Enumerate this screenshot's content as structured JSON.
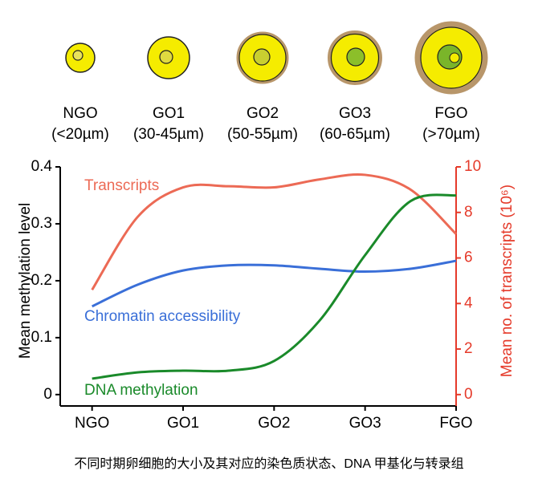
{
  "stages": [
    {
      "name": "NGO",
      "size": "(<20µm)"
    },
    {
      "name": "GO1",
      "size": "(30-45µm)"
    },
    {
      "name": "GO2",
      "size": "(50-55µm)"
    },
    {
      "name": "GO3",
      "size": "(60-65µm)"
    },
    {
      "name": "FGO",
      "size": "(>70µm)"
    }
  ],
  "chart_data": {
    "type": "line",
    "ylabel": "Mean methylation level",
    "y2label": "Mean no. of transcripts (10⁶)",
    "caption": "不同时期卵细胞的大小及其对应的染色质状态、DNA 甲基化与转录组",
    "x": [
      0,
      0.5,
      1,
      1.5,
      2,
      2.5,
      3,
      3.5,
      4
    ],
    "xlim": [
      -0.35,
      4
    ],
    "xticks": [
      {
        "value": 0,
        "label": "NGO"
      },
      {
        "value": 1,
        "label": "GO1"
      },
      {
        "value": 2,
        "label": "GO2"
      },
      {
        "value": 3,
        "label": "GO3"
      },
      {
        "value": 4,
        "label": "FGO"
      }
    ],
    "ylim": [
      -0.02,
      0.4
    ],
    "yticks": [
      0,
      0.1,
      0.2,
      0.3,
      0.4
    ],
    "y2lim": [
      -0.5,
      10
    ],
    "y2ticks": [
      0,
      2,
      4,
      6,
      8,
      10
    ],
    "y2color": "#e53a2a",
    "series": [
      {
        "name": "Transcripts",
        "color": "#ec6a55",
        "axis": "y2",
        "values": [
          4.6,
          7.8,
          9.1,
          9.15,
          9.1,
          9.45,
          9.65,
          9.0,
          7.05
        ]
      },
      {
        "name": "Chromatin accessibility",
        "color": "#3a6fd8",
        "values": [
          0.155,
          0.193,
          0.218,
          0.227,
          0.227,
          0.221,
          0.216,
          0.221,
          0.235
        ]
      },
      {
        "name": "DNA methylation",
        "color": "#1a8a2a",
        "values": [
          0.028,
          0.039,
          0.042,
          0.042,
          0.059,
          0.13,
          0.245,
          0.34,
          0.35
        ]
      }
    ]
  }
}
